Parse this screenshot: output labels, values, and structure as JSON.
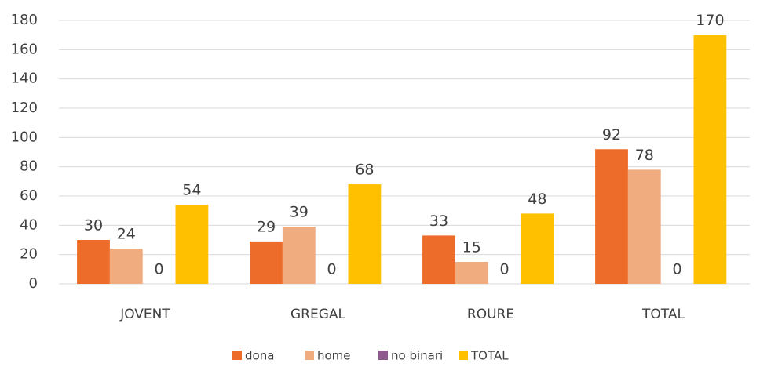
{
  "chart_data": {
    "type": "bar",
    "categories": [
      "JOVENT",
      "GREGAL",
      "ROURE",
      "TOTAL"
    ],
    "series": [
      {
        "name": "dona",
        "color": "#ed6c2a",
        "values": [
          30,
          29,
          33,
          92
        ]
      },
      {
        "name": "home",
        "color": "#f0ab7e",
        "values": [
          24,
          39,
          15,
          78
        ]
      },
      {
        "name": "no binari",
        "color": "#8e5a8e",
        "values": [
          0,
          0,
          0,
          0
        ]
      },
      {
        "name": "TOTAL",
        "color": "#ffc000",
        "values": [
          54,
          68,
          48,
          170
        ]
      }
    ],
    "ylim": [
      0,
      180
    ],
    "yticks": [
      0,
      20,
      40,
      60,
      80,
      100,
      120,
      140,
      160,
      180
    ],
    "grid": true,
    "legend": "bottom"
  }
}
